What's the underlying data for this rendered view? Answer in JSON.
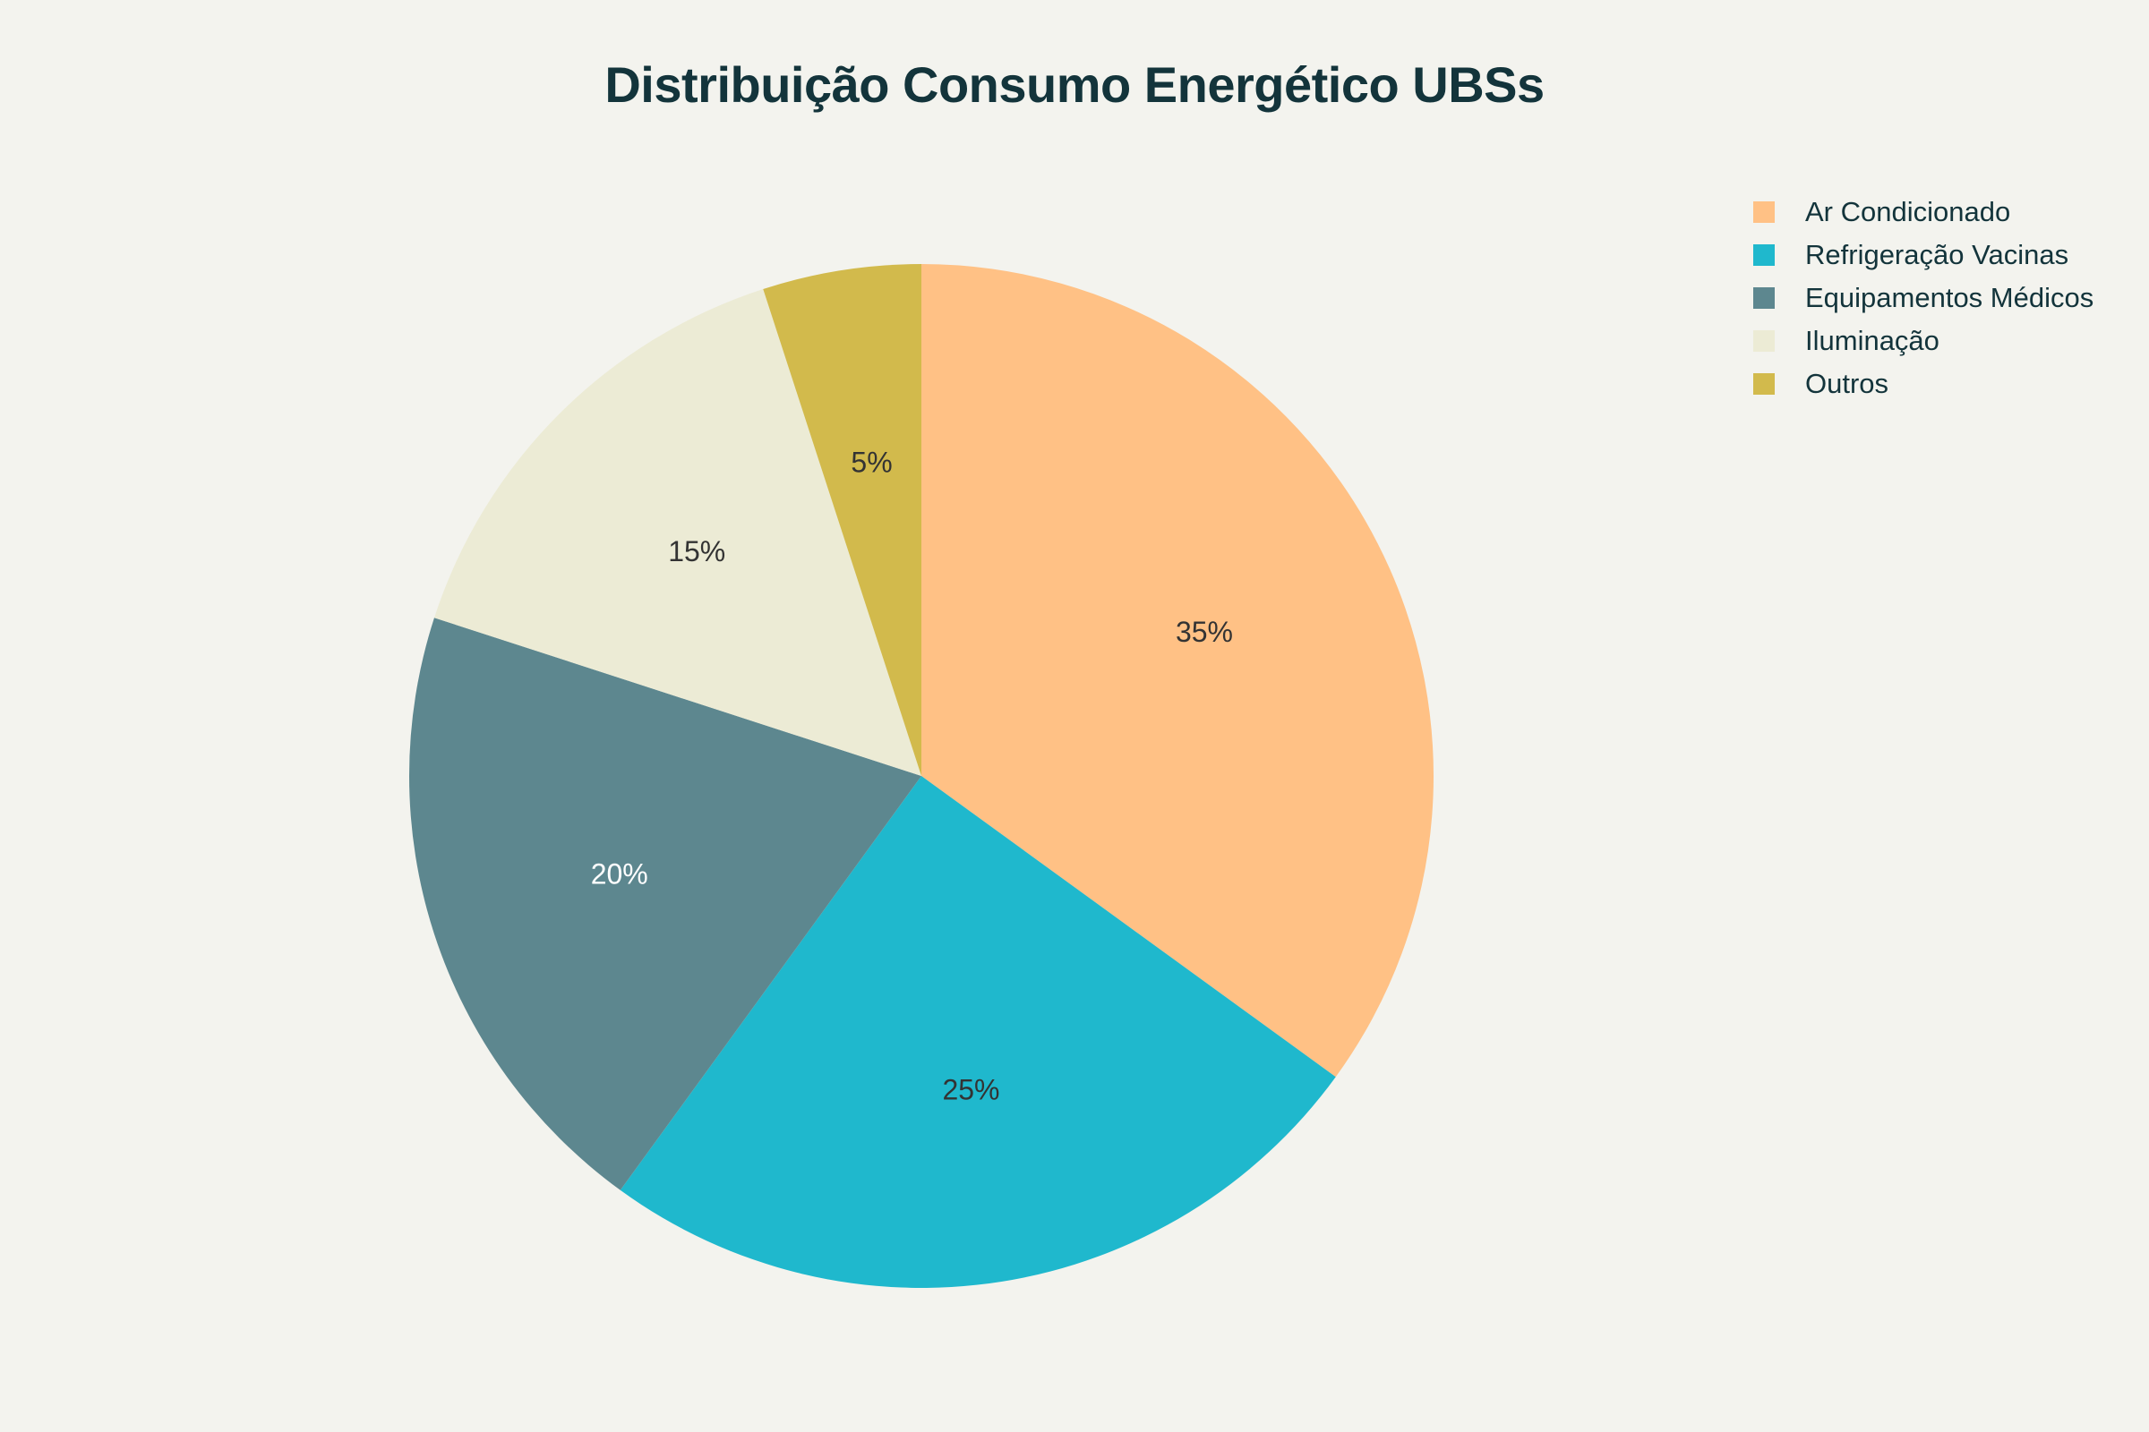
{
  "chart_data": {
    "type": "pie",
    "title": "Distribuição Consumo Energético UBSs",
    "labels": [
      "Ar Condicionado",
      "Refrigeração Vacinas",
      "Equipamentos Médicos",
      "Iluminação",
      "Outros"
    ],
    "values": [
      35,
      25,
      20,
      15,
      5
    ],
    "value_labels": [
      "35%",
      "25%",
      "20%",
      "15%",
      "5%"
    ],
    "colors": [
      "#ffc185",
      "#1fb8cd",
      "#5d878f",
      "#ecebd5",
      "#d2ba4c"
    ],
    "label_colors": [
      "#333333",
      "#333333",
      "#ffffff",
      "#333333",
      "#333333"
    ],
    "legend_position": "top-right",
    "direction": "clockwise",
    "start_angle": "top"
  }
}
